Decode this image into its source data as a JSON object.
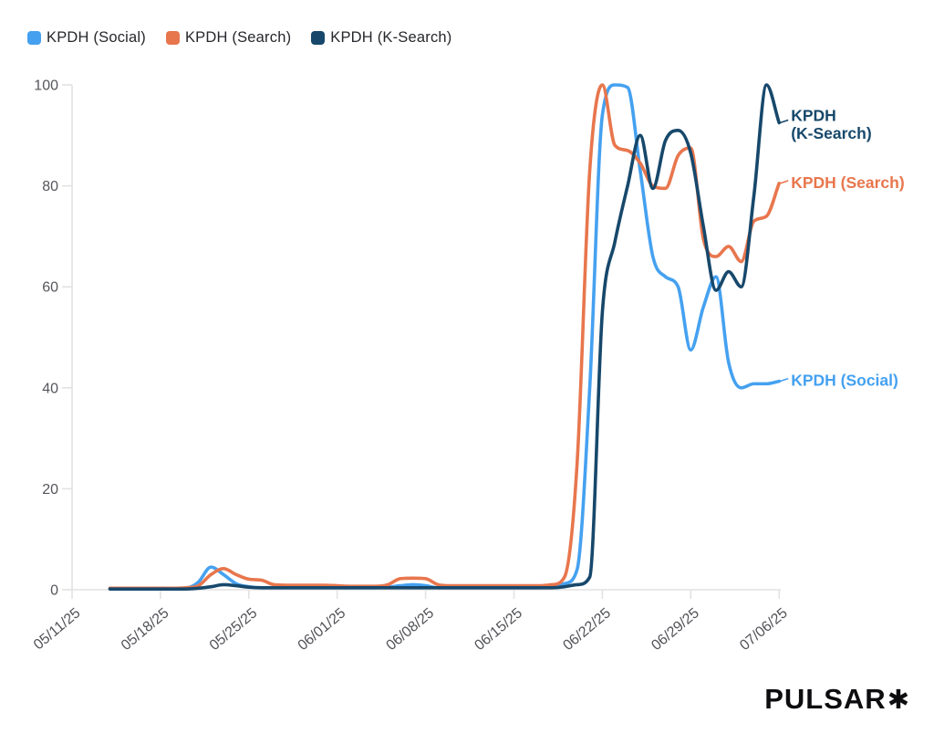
{
  "legend": {
    "items": [
      {
        "label": "KPDH (Social)",
        "color": "#45A1F0"
      },
      {
        "label": "KPDH (Search)",
        "color": "#E8764D"
      },
      {
        "label": "KPDH (K-Search)",
        "color": "#17486B"
      }
    ]
  },
  "logo": {
    "text": "PULSAR",
    "asterisk": "✱"
  },
  "chart_data": {
    "type": "line",
    "x": [
      "05/14/25",
      "05/15/25",
      "05/16/25",
      "05/17/25",
      "05/18/25",
      "05/19/25",
      "05/20/25",
      "05/21/25",
      "05/22/25",
      "05/23/25",
      "05/24/25",
      "05/25/25",
      "05/26/25",
      "05/27/25",
      "05/28/25",
      "05/29/25",
      "05/30/25",
      "05/31/25",
      "06/01/25",
      "06/02/25",
      "06/03/25",
      "06/04/25",
      "06/05/25",
      "06/06/25",
      "06/07/25",
      "06/08/25",
      "06/09/25",
      "06/10/25",
      "06/11/25",
      "06/12/25",
      "06/13/25",
      "06/14/25",
      "06/15/25",
      "06/16/25",
      "06/17/25",
      "06/18/25",
      "06/19/25",
      "06/20/25",
      "06/21/25",
      "06/22/25",
      "06/23/25",
      "06/24/25",
      "06/25/25",
      "06/26/25",
      "06/27/25",
      "06/28/25",
      "06/29/25",
      "06/30/25",
      "07/01/25",
      "07/02/25",
      "07/03/25",
      "07/04/25",
      "07/05/25",
      "07/06/25"
    ],
    "series": [
      {
        "name": "KPDH (Social)",
        "color": "#45A1F0",
        "values": [
          0.2,
          0.2,
          0.2,
          0.2,
          0.2,
          0.2,
          0.3,
          1.5,
          4.5,
          3.0,
          1.2,
          0.6,
          0.4,
          0.4,
          0.4,
          0.4,
          0.4,
          0.4,
          0.4,
          0.4,
          0.4,
          0.4,
          0.5,
          0.8,
          1.0,
          0.8,
          0.4,
          0.4,
          0.4,
          0.4,
          0.4,
          0.4,
          0.4,
          0.4,
          0.4,
          0.6,
          1.2,
          4,
          40,
          94,
          100,
          99.5,
          83,
          66,
          62,
          60,
          47.5,
          56,
          62,
          45,
          40,
          40.8,
          40.8,
          41.3
        ]
      },
      {
        "name": "KPDH (Search)",
        "color": "#E8764D",
        "values": [
          0.3,
          0.3,
          0.3,
          0.3,
          0.3,
          0.3,
          0.4,
          0.8,
          3.0,
          4.2,
          3.0,
          2.1,
          1.9,
          1.0,
          0.9,
          0.9,
          0.9,
          0.9,
          0.8,
          0.7,
          0.7,
          0.7,
          1.0,
          2.2,
          2.3,
          2.2,
          1.0,
          0.8,
          0.8,
          0.8,
          0.8,
          0.8,
          0.8,
          0.8,
          0.8,
          1.0,
          2.5,
          25,
          83,
          100,
          88,
          87,
          84.5,
          80,
          79.5,
          86,
          87.5,
          69.5,
          66,
          68,
          65,
          73,
          74,
          80.5
        ]
      },
      {
        "name": "KPDH (K-Search)",
        "color": "#17486B",
        "values": [
          0.15,
          0.15,
          0.15,
          0.15,
          0.15,
          0.15,
          0.15,
          0.3,
          0.6,
          1.0,
          0.8,
          0.5,
          0.4,
          0.4,
          0.4,
          0.4,
          0.4,
          0.4,
          0.4,
          0.4,
          0.4,
          0.4,
          0.4,
          0.4,
          0.4,
          0.4,
          0.4,
          0.4,
          0.4,
          0.4,
          0.4,
          0.4,
          0.4,
          0.4,
          0.4,
          0.4,
          0.6,
          1.0,
          2.5,
          55,
          69,
          80,
          90,
          79.5,
          89,
          91,
          86.5,
          72,
          59.3,
          63,
          60,
          78,
          100,
          92.5
        ]
      }
    ],
    "xticks": [
      "05/11/25",
      "05/18/25",
      "05/25/25",
      "06/01/25",
      "06/08/25",
      "06/15/25",
      "06/22/25",
      "06/29/25",
      "07/06/25"
    ],
    "yticks": [
      0,
      20,
      40,
      60,
      80,
      100
    ],
    "ylim": [
      0,
      100
    ],
    "grid": false,
    "legend_position": "top-left",
    "end_labels": [
      {
        "series": "KPDH (K-Search)",
        "lines": [
          "KPDH",
          "(K-Search)"
        ]
      },
      {
        "series": "KPDH (Search)",
        "lines": [
          "KPDH (Search)"
        ]
      },
      {
        "series": "KPDH (Social)",
        "lines": [
          "KPDH (Social)"
        ]
      }
    ]
  }
}
